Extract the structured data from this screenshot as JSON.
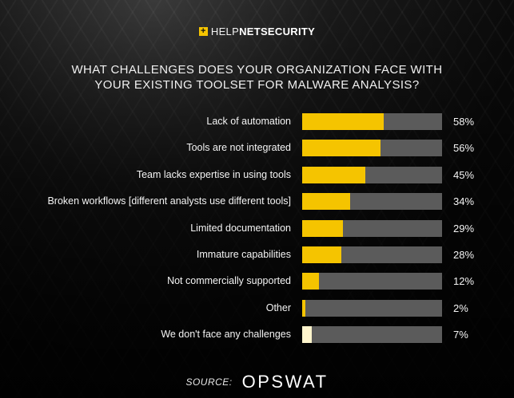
{
  "header": {
    "logo_mark": "+",
    "logo_help": "HELP",
    "logo_sec": "NETSECURITY"
  },
  "chart_data": {
    "type": "bar",
    "orientation": "horizontal",
    "title_lines": [
      "WHAT CHALLENGES DOES YOUR ORGANIZATION FACE WITH",
      "YOUR EXISTING TOOLSET FOR MALWARE ANALYSIS?"
    ],
    "categories": [
      "Lack of automation",
      "Tools are not integrated",
      "Team lacks expertise in using tools",
      "Broken workflows [different analysts use different tools]",
      "Limited documentation",
      "Immature capabilities",
      "Not commercially supported",
      "Other",
      "We don't face any challenges"
    ],
    "values": [
      58,
      56,
      45,
      34,
      29,
      28,
      12,
      2,
      7
    ],
    "value_labels": [
      "58%",
      "56%",
      "45%",
      "34%",
      "29%",
      "28%",
      "12%",
      "2%",
      "7%"
    ],
    "xlim": [
      0,
      100
    ],
    "bar_color": "#f5c400",
    "highlight_color": "#fff5cc",
    "highlight_index": 8,
    "track_color": "#5b5b5b"
  },
  "footer": {
    "source_label": "SOURCE:",
    "source_brand": "OPSWAT"
  }
}
